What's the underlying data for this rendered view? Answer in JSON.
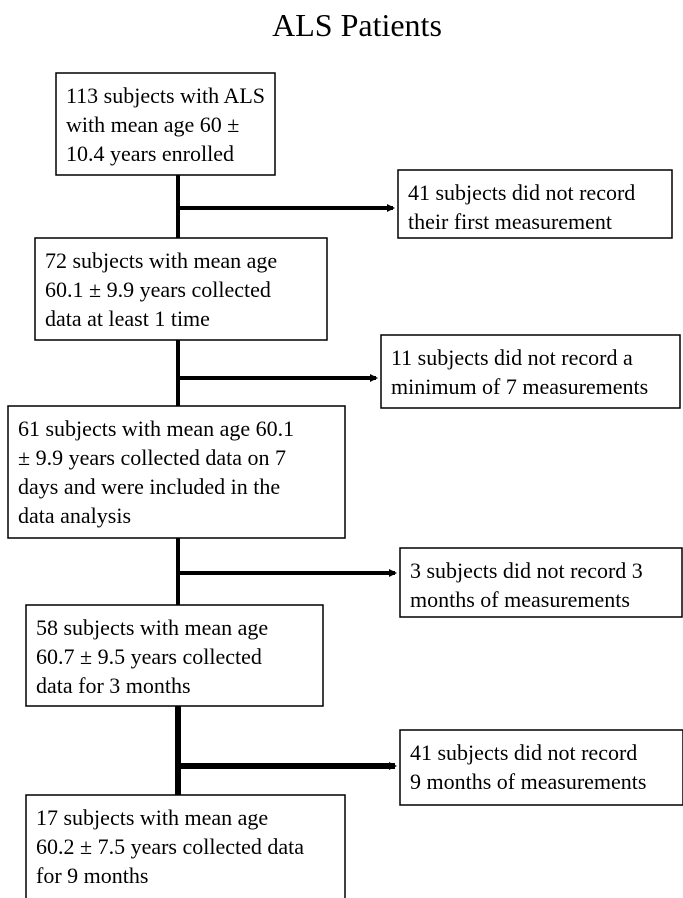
{
  "title": "ALS Patients",
  "nodes": [
    {
      "lines": [
        "113 subjects with ALS",
        "with mean age 60 ±",
        "10.4 years enrolled"
      ]
    },
    {
      "lines": [
        "72 subjects with mean age",
        "60.1 ± 9.9 years collected",
        "data at least 1 time"
      ]
    },
    {
      "lines": [
        "61 subjects with mean age 60.1",
        "± 9.9 years collected data on 7",
        "days and were included in the",
        "data analysis"
      ]
    },
    {
      "lines": [
        "58 subjects with mean age",
        "60.7 ± 9.5 years collected",
        "data for 3 months"
      ]
    },
    {
      "lines": [
        "17 subjects with mean age",
        "60.2 ± 7.5 years collected data",
        "for 9 months"
      ]
    }
  ],
  "exclusions": [
    {
      "lines": [
        "41 subjects did not record",
        "their first measurement"
      ]
    },
    {
      "lines": [
        "11 subjects did not record a",
        "minimum of 7 measurements"
      ]
    },
    {
      "lines": [
        "3 subjects did not record 3",
        "months of measurements"
      ]
    },
    {
      "lines": [
        "41 subjects did not record",
        "9 months of measurements"
      ]
    }
  ]
}
